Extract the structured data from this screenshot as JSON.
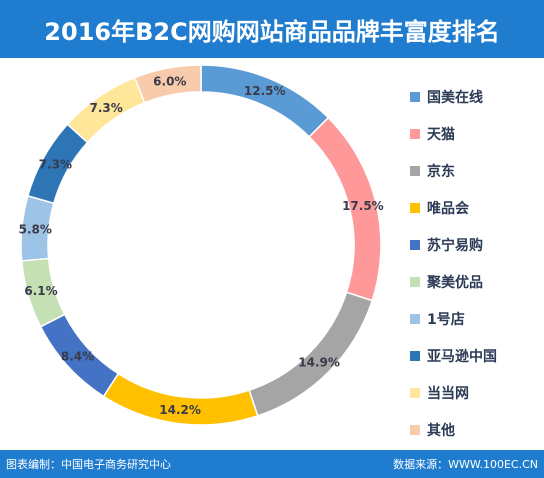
{
  "header": {
    "title": "2016年B2C网购网站商品品牌丰富度排名"
  },
  "footer": {
    "left": "图表编制：中国电子商务研究中心",
    "right": "数据来源：WWW.100EC.CN"
  },
  "chart_data": {
    "type": "pie",
    "style": "donut",
    "title": "2016年B2C网购网站商品品牌丰富度排名",
    "legend_position": "right",
    "unit": "%",
    "categories": [
      "国美在线",
      "天猫",
      "京东",
      "唯品会",
      "苏宁易购",
      "聚美优品",
      "1号店",
      "亚马逊中国",
      "当当网",
      "其他"
    ],
    "values": [
      12.5,
      17.5,
      14.9,
      14.2,
      8.4,
      6.1,
      5.8,
      7.3,
      7.3,
      6.0
    ],
    "labels": [
      "12.5%",
      "17.5%",
      "14.9%",
      "14.2%",
      "8.4%",
      "6.1%",
      "5.8%",
      "7.3%",
      "7.3%",
      "6.0%"
    ],
    "colors": [
      "#5b9bd5",
      "#ff9999",
      "#a5a5a5",
      "#ffc000",
      "#4472c4",
      "#c5e0b4",
      "#9dc3e6",
      "#2e75b6",
      "#ffe699",
      "#f8cbad"
    ]
  }
}
